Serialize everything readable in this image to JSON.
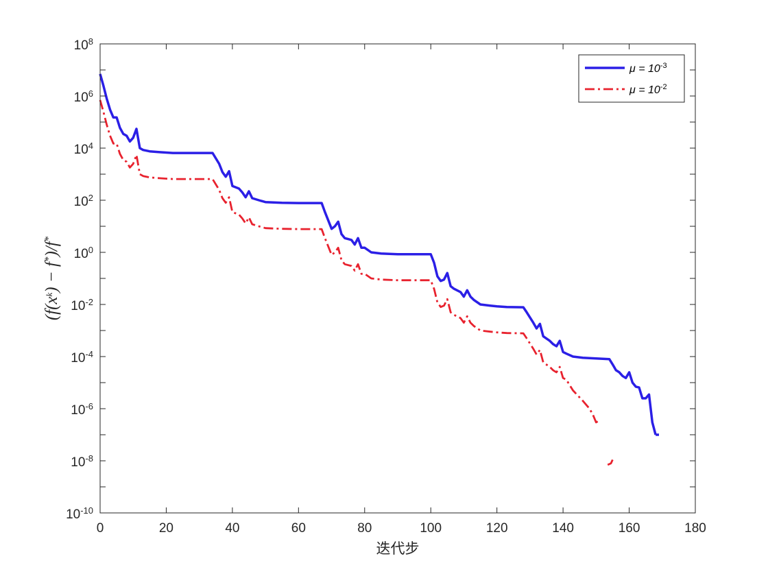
{
  "chart_data": {
    "type": "line",
    "y_scale": "log",
    "xlabel": "迭代步",
    "ylabel": "(f(x^k) − f*)/f*",
    "ylabel_parts": [
      "(f(x",
      "k",
      ") − f",
      "*",
      ")/f",
      "*"
    ],
    "xlim": [
      0,
      180
    ],
    "ylim": [
      1e-10,
      100000000.0
    ],
    "xticks": [
      0,
      20,
      40,
      60,
      80,
      100,
      120,
      140,
      160,
      180
    ],
    "ytick_exponents": [
      -10,
      -8,
      -6,
      -4,
      -2,
      0,
      2,
      4,
      6,
      8
    ],
    "ytick_base": "10",
    "grid": false,
    "legend_position": "top-right",
    "series": [
      {
        "name": "μ = 10^-3",
        "legend_prefix": "μ = 10",
        "legend_exponent": "-3",
        "color": "#2B1FE6",
        "style": "solid",
        "x": [
          0,
          1,
          2,
          3,
          4,
          5,
          6,
          7,
          8,
          9,
          10,
          11,
          12,
          13,
          15,
          18,
          22,
          26,
          30,
          34,
          36,
          37,
          38,
          39,
          40,
          42,
          43,
          44,
          45,
          46,
          48,
          50,
          55,
          60,
          67,
          68,
          70,
          71,
          72,
          73,
          74,
          76,
          77,
          78,
          79,
          80,
          82,
          85,
          90,
          100,
          101,
          102,
          103,
          104,
          105,
          106,
          107,
          109,
          110,
          111,
          112,
          113,
          115,
          118,
          120,
          123,
          128,
          129,
          131,
          132,
          133,
          134,
          136,
          137,
          138,
          139,
          140,
          141,
          143,
          146,
          150,
          154,
          155,
          156,
          157,
          158,
          159,
          160,
          161,
          162,
          163,
          164,
          165,
          166,
          167,
          168
        ],
        "y": [
          7000000.0,
          2500000.0,
          800000.0,
          300000.0,
          150000.0,
          150000.0,
          60000.0,
          35000.0,
          30000.0,
          18000.0,
          25000.0,
          55000.0,
          10000.0,
          8500.0,
          7500.0,
          7000.0,
          6500.0,
          6500.0,
          6500.0,
          6500.0,
          2500.0,
          1200.0,
          800,
          1300.0,
          350,
          280,
          200,
          130,
          220,
          120,
          100,
          85,
          80,
          78,
          78,
          35,
          8,
          10,
          15,
          5,
          3.5,
          3,
          2,
          3.5,
          1.5,
          1.5,
          1,
          0.9,
          0.85,
          0.85,
          0.4,
          0.12,
          0.08,
          0.09,
          0.16,
          0.05,
          0.04,
          0.03,
          0.02,
          0.035,
          0.02,
          0.015,
          0.01,
          0.009,
          0.0085,
          0.008,
          0.0078,
          0.005,
          0.002,
          0.0012,
          0.0018,
          0.0006,
          0.0004,
          0.0003,
          0.00025,
          0.0004,
          0.00015,
          0.00013,
          0.0001,
          9e-05,
          8.5e-05,
          8e-05,
          5e-05,
          3e-05,
          2.5e-05,
          1.8e-05,
          1.5e-05,
          2.5e-05,
          1e-05,
          7e-06,
          6.5e-06,
          2.5e-06,
          2.5e-06,
          3.5e-06,
          3e-07,
          1e-07
        ],
        "x_tail": [
          168,
          169
        ],
        "y_tail": [
          1e-07,
          1e-07
        ]
      },
      {
        "name": "μ = 10^-2",
        "legend_prefix": "μ = 10",
        "legend_exponent": "-2",
        "color": "#E8222E",
        "style": "dashdot",
        "x": [
          0,
          1,
          2,
          3,
          4,
          5,
          6,
          7,
          8,
          9,
          10,
          11,
          12,
          13,
          15,
          18,
          22,
          26,
          30,
          34,
          36,
          37,
          38,
          39,
          40,
          42,
          43,
          44,
          45,
          46,
          48,
          50,
          55,
          60,
          67,
          68,
          70,
          71,
          72,
          73,
          74,
          76,
          77,
          78,
          79,
          80,
          82,
          85,
          90,
          100,
          101,
          102,
          103,
          104,
          105,
          106,
          107,
          109,
          110,
          111,
          112,
          113,
          115,
          118,
          120,
          123,
          128,
          129,
          131,
          132,
          133,
          134,
          136,
          137,
          138,
          139,
          140,
          141,
          143,
          146,
          148,
          149,
          150,
          151
        ],
        "y": [
          700000.0,
          250000.0,
          80000.0,
          30000.0,
          15000.0,
          15000.0,
          6000.0,
          3500.0,
          3000.0,
          1800.0,
          2500.0,
          5500.0,
          1000.0,
          850,
          750,
          700,
          650,
          650,
          650,
          650,
          250,
          120,
          80,
          130,
          35,
          28,
          20,
          13,
          22,
          12,
          10,
          8.5,
          8,
          7.8,
          7.8,
          3.5,
          0.8,
          1,
          1.5,
          0.5,
          0.35,
          0.3,
          0.2,
          0.35,
          0.15,
          0.15,
          0.1,
          0.09,
          0.085,
          0.085,
          0.04,
          0.012,
          0.008,
          0.009,
          0.016,
          0.005,
          0.004,
          0.003,
          0.002,
          0.0035,
          0.002,
          0.0015,
          0.001,
          0.0009,
          0.00085,
          0.0008,
          0.00078,
          0.0005,
          0.0002,
          0.00012,
          0.00018,
          6e-05,
          4e-05,
          3e-05,
          2.5e-05,
          4e-05,
          1.5e-05,
          1.3e-05,
          5e-06,
          2e-06,
          1e-06,
          6e-07,
          3e-07,
          3.5e-07
        ],
        "x_tail": [
          153.5,
          154.5,
          155
        ],
        "y_tail": [
          7e-09,
          8e-09,
          1.1e-08
        ]
      }
    ]
  }
}
